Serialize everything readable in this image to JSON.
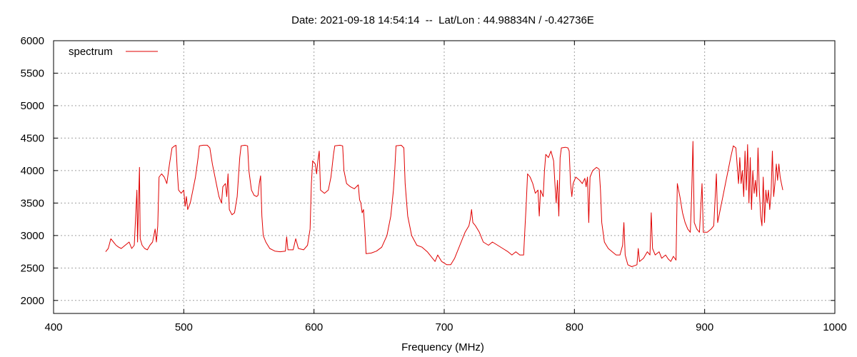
{
  "chart_data": {
    "type": "line",
    "title": "Date: 2021-09-18 14:54:14  --  Lat/Lon : 44.98834N / -0.42736E",
    "xlabel": "Frequency (MHz)",
    "ylabel": "",
    "xlim": [
      400,
      1000
    ],
    "ylim": [
      1800,
      6000
    ],
    "x_ticks": [
      400,
      500,
      600,
      700,
      800,
      900,
      1000
    ],
    "y_ticks": [
      2000,
      2500,
      3000,
      3500,
      4000,
      4500,
      5000,
      5500,
      6000
    ],
    "x_tick_labels": [
      "400",
      "500",
      "600",
      "700",
      "800",
      "900",
      "1000"
    ],
    "y_tick_labels": [
      "2000",
      "2500",
      "3000",
      "3500",
      "4000",
      "4500",
      "5000",
      "5500",
      "6000"
    ],
    "grid": true,
    "legend_position": "top-left",
    "series": [
      {
        "name": "spectrum",
        "color": "#e00000",
        "points": [
          [
            440,
            2750
          ],
          [
            442,
            2800
          ],
          [
            444,
            2950
          ],
          [
            446,
            2900
          ],
          [
            448,
            2850
          ],
          [
            450,
            2820
          ],
          [
            452,
            2800
          ],
          [
            455,
            2850
          ],
          [
            458,
            2900
          ],
          [
            460,
            2800
          ],
          [
            462,
            2850
          ],
          [
            464,
            3700
          ],
          [
            464.5,
            2900
          ],
          [
            466,
            4050
          ],
          [
            466.5,
            2950
          ],
          [
            468,
            2850
          ],
          [
            470,
            2800
          ],
          [
            472,
            2780
          ],
          [
            474,
            2850
          ],
          [
            476,
            2900
          ],
          [
            478,
            3100
          ],
          [
            479,
            2900
          ],
          [
            480,
            3150
          ],
          [
            481,
            3900
          ],
          [
            483,
            3950
          ],
          [
            485,
            3900
          ],
          [
            487,
            3800
          ],
          [
            489,
            4100
          ],
          [
            491,
            4350
          ],
          [
            493,
            4380
          ],
          [
            494,
            4390
          ],
          [
            495,
            4000
          ],
          [
            496,
            3700
          ],
          [
            498,
            3650
          ],
          [
            500,
            3700
          ],
          [
            501,
            3450
          ],
          [
            502,
            3600
          ],
          [
            503,
            3400
          ],
          [
            505,
            3500
          ],
          [
            507,
            3700
          ],
          [
            509,
            3900
          ],
          [
            511,
            4200
          ],
          [
            512,
            4380
          ],
          [
            515,
            4390
          ],
          [
            518,
            4390
          ],
          [
            520,
            4350
          ],
          [
            522,
            4100
          ],
          [
            525,
            3800
          ],
          [
            527,
            3600
          ],
          [
            529,
            3500
          ],
          [
            530,
            3750
          ],
          [
            532,
            3800
          ],
          [
            533,
            3600
          ],
          [
            534,
            3950
          ],
          [
            535,
            3400
          ],
          [
            537,
            3320
          ],
          [
            539,
            3350
          ],
          [
            541,
            3600
          ],
          [
            543,
            4200
          ],
          [
            544,
            4380
          ],
          [
            547,
            4390
          ],
          [
            549,
            4380
          ],
          [
            550,
            4000
          ],
          [
            552,
            3700
          ],
          [
            554,
            3620
          ],
          [
            556,
            3600
          ],
          [
            557,
            3620
          ],
          [
            558,
            3800
          ],
          [
            559,
            3920
          ],
          [
            560,
            3300
          ],
          [
            561,
            3000
          ],
          [
            563,
            2900
          ],
          [
            566,
            2800
          ],
          [
            570,
            2760
          ],
          [
            574,
            2750
          ],
          [
            578,
            2760
          ],
          [
            579,
            2980
          ],
          [
            580,
            2780
          ],
          [
            584,
            2780
          ],
          [
            586,
            2950
          ],
          [
            588,
            2800
          ],
          [
            592,
            2780
          ],
          [
            595,
            2850
          ],
          [
            597,
            3100
          ],
          [
            598,
            3800
          ],
          [
            599,
            4150
          ],
          [
            601,
            4100
          ],
          [
            602,
            3950
          ],
          [
            603,
            4150
          ],
          [
            604,
            4300
          ],
          [
            605,
            3700
          ],
          [
            608,
            3650
          ],
          [
            611,
            3700
          ],
          [
            613,
            3900
          ],
          [
            615,
            4250
          ],
          [
            616,
            4380
          ],
          [
            620,
            4390
          ],
          [
            622,
            4380
          ],
          [
            623,
            4000
          ],
          [
            625,
            3800
          ],
          [
            628,
            3750
          ],
          [
            631,
            3720
          ],
          [
            634,
            3780
          ],
          [
            635,
            3550
          ],
          [
            636,
            3500
          ],
          [
            637,
            3350
          ],
          [
            638,
            3400
          ],
          [
            639,
            3100
          ],
          [
            640,
            2720
          ],
          [
            644,
            2730
          ],
          [
            648,
            2760
          ],
          [
            652,
            2820
          ],
          [
            656,
            3000
          ],
          [
            659,
            3300
          ],
          [
            661,
            3700
          ],
          [
            662,
            4000
          ],
          [
            663,
            4380
          ],
          [
            667,
            4390
          ],
          [
            669,
            4350
          ],
          [
            670,
            3800
          ],
          [
            672,
            3300
          ],
          [
            675,
            3000
          ],
          [
            679,
            2850
          ],
          [
            683,
            2820
          ],
          [
            687,
            2750
          ],
          [
            691,
            2650
          ],
          [
            693,
            2600
          ],
          [
            695,
            2700
          ],
          [
            698,
            2600
          ],
          [
            702,
            2550
          ],
          [
            705,
            2550
          ],
          [
            708,
            2650
          ],
          [
            712,
            2850
          ],
          [
            716,
            3050
          ],
          [
            719,
            3150
          ],
          [
            720,
            3250
          ],
          [
            721,
            3400
          ],
          [
            722,
            3200
          ],
          [
            724,
            3150
          ],
          [
            727,
            3050
          ],
          [
            730,
            2900
          ],
          [
            734,
            2850
          ],
          [
            737,
            2900
          ],
          [
            741,
            2850
          ],
          [
            745,
            2800
          ],
          [
            749,
            2750
          ],
          [
            752,
            2700
          ],
          [
            755,
            2750
          ],
          [
            758,
            2700
          ],
          [
            761,
            2700
          ],
          [
            762,
            3100
          ],
          [
            763,
            3500
          ],
          [
            764,
            3950
          ],
          [
            766,
            3900
          ],
          [
            768,
            3800
          ],
          [
            770,
            3650
          ],
          [
            772,
            3700
          ],
          [
            773,
            3300
          ],
          [
            774,
            3700
          ],
          [
            776,
            3600
          ],
          [
            777,
            4000
          ],
          [
            778,
            4250
          ],
          [
            780,
            4200
          ],
          [
            782,
            4300
          ],
          [
            784,
            4150
          ],
          [
            785,
            3800
          ],
          [
            786,
            3500
          ],
          [
            787,
            3850
          ],
          [
            788,
            3300
          ],
          [
            789,
            4200
          ],
          [
            790,
            4350
          ],
          [
            793,
            4360
          ],
          [
            795,
            4350
          ],
          [
            796,
            4300
          ],
          [
            797,
            3800
          ],
          [
            798,
            3600
          ],
          [
            799,
            3800
          ],
          [
            801,
            3900
          ],
          [
            804,
            3850
          ],
          [
            806,
            3800
          ],
          [
            808,
            3880
          ],
          [
            809,
            3750
          ],
          [
            810,
            3900
          ],
          [
            811,
            3200
          ],
          [
            812,
            3900
          ],
          [
            814,
            4000
          ],
          [
            817,
            4050
          ],
          [
            819,
            4020
          ],
          [
            820,
            3700
          ],
          [
            821,
            3200
          ],
          [
            823,
            2900
          ],
          [
            826,
            2800
          ],
          [
            829,
            2750
          ],
          [
            832,
            2700
          ],
          [
            835,
            2700
          ],
          [
            837,
            2850
          ],
          [
            838,
            3200
          ],
          [
            839,
            2700
          ],
          [
            841,
            2550
          ],
          [
            844,
            2520
          ],
          [
            848,
            2550
          ],
          [
            849,
            2800
          ],
          [
            850,
            2600
          ],
          [
            853,
            2650
          ],
          [
            856,
            2750
          ],
          [
            858,
            2700
          ],
          [
            859,
            3350
          ],
          [
            860,
            2800
          ],
          [
            862,
            2700
          ],
          [
            865,
            2750
          ],
          [
            867,
            2650
          ],
          [
            870,
            2700
          ],
          [
            872,
            2640
          ],
          [
            874,
            2600
          ],
          [
            876,
            2680
          ],
          [
            878,
            2620
          ],
          [
            879,
            3800
          ],
          [
            881,
            3600
          ],
          [
            883,
            3350
          ],
          [
            885,
            3200
          ],
          [
            887,
            3100
          ],
          [
            889,
            3050
          ],
          [
            890,
            3600
          ],
          [
            891,
            4450
          ],
          [
            892,
            3200
          ],
          [
            894,
            3100
          ],
          [
            896,
            3050
          ],
          [
            898,
            3800
          ],
          [
            899,
            3050
          ],
          [
            902,
            3050
          ],
          [
            905,
            3100
          ],
          [
            907,
            3150
          ],
          [
            909,
            3950
          ],
          [
            910,
            3200
          ],
          [
            912,
            3400
          ],
          [
            914,
            3600
          ],
          [
            916,
            3800
          ],
          [
            918,
            4000
          ],
          [
            920,
            4200
          ],
          [
            922,
            4380
          ],
          [
            924,
            4350
          ],
          [
            926,
            3800
          ],
          [
            927,
            4200
          ],
          [
            928,
            3800
          ],
          [
            929,
            4000
          ],
          [
            930,
            3600
          ],
          [
            931,
            4300
          ],
          [
            932,
            3700
          ],
          [
            933,
            4400
          ],
          [
            934,
            3500
          ],
          [
            935,
            4200
          ],
          [
            936,
            3400
          ],
          [
            937,
            4000
          ],
          [
            938,
            3650
          ],
          [
            939,
            3850
          ],
          [
            940,
            3600
          ],
          [
            941,
            4350
          ],
          [
            942,
            3700
          ],
          [
            943,
            3300
          ],
          [
            944,
            3150
          ],
          [
            945,
            3900
          ],
          [
            946,
            3200
          ],
          [
            947,
            3700
          ],
          [
            948,
            3500
          ],
          [
            949,
            3700
          ],
          [
            950,
            3400
          ],
          [
            951,
            3650
          ],
          [
            952,
            4300
          ],
          [
            953,
            3600
          ],
          [
            954,
            3800
          ],
          [
            955,
            4100
          ],
          [
            956,
            3850
          ],
          [
            957,
            4100
          ],
          [
            958,
            3900
          ],
          [
            959,
            3800
          ],
          [
            960,
            3700
          ]
        ]
      }
    ]
  }
}
